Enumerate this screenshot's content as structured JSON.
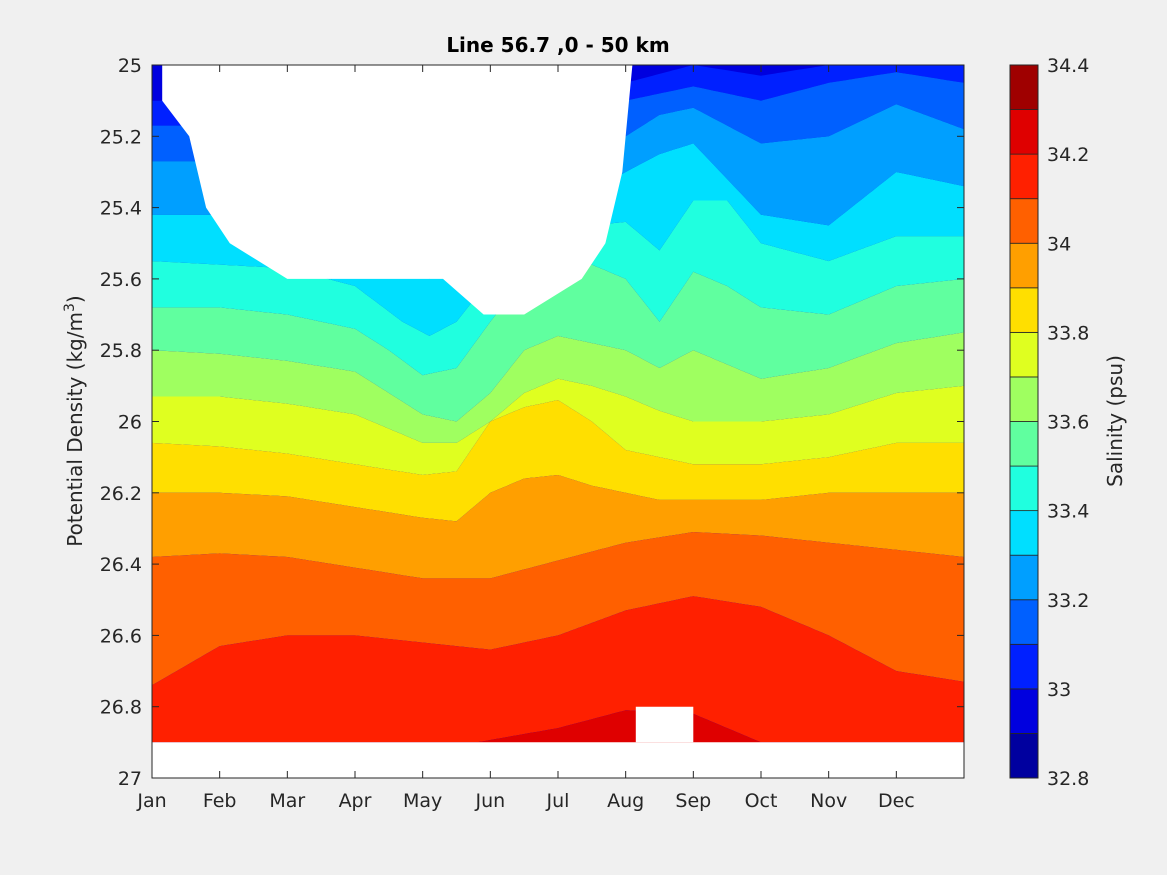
{
  "chart_data": {
    "type": "contourf",
    "title": "Line 56.7 ,0 - 50 km",
    "xlabel": "",
    "ylabel_main": "Potential Density (kg/m",
    "ylabel_sup": "3",
    "ylabel_close": ")",
    "x_ticks": [
      "Jan",
      "Feb",
      "Mar",
      "Apr",
      "May",
      "Jun",
      "Jul",
      "Aug",
      "Sep",
      "Oct",
      "Nov",
      "Dec"
    ],
    "xlim_months": [
      0,
      12
    ],
    "y_ticks": [
      "25",
      "25.2",
      "25.4",
      "25.6",
      "25.8",
      "26",
      "26.2",
      "26.4",
      "26.6",
      "26.8",
      "27"
    ],
    "ylim": [
      25,
      27
    ],
    "y_reversed": true,
    "colorbar": {
      "label": "Salinity (psu)",
      "range": [
        32.8,
        34.4
      ],
      "step": 0.1,
      "tick_labels": [
        "32.8",
        "33",
        "33.2",
        "33.4",
        "33.6",
        "33.8",
        "34",
        "34.2",
        "34.4"
      ],
      "colormap": "jet"
    },
    "contour_lines": [
      {
        "level": 33.0,
        "month": [
          0,
          2,
          4,
          6,
          7,
          8,
          9,
          10,
          11,
          12
        ],
        "density": [
          25.1,
          25.1,
          25.1,
          25.1,
          25.05,
          25.0,
          25.03,
          25.0,
          24.98,
          25.0
        ]
      },
      {
        "level": 33.1,
        "month": [
          0,
          2,
          4,
          6,
          7,
          8,
          9,
          10,
          11,
          12
        ],
        "density": [
          25.17,
          25.17,
          25.17,
          25.17,
          25.1,
          25.06,
          25.1,
          25.05,
          25.02,
          25.05
        ]
      },
      {
        "level": 33.2,
        "month": [
          0,
          2,
          4,
          6,
          7,
          7.5,
          8,
          9,
          10,
          11,
          12
        ],
        "density": [
          25.27,
          25.27,
          25.27,
          25.27,
          25.2,
          25.14,
          25.12,
          25.22,
          25.2,
          25.11,
          25.18
        ]
      },
      {
        "level": 33.3,
        "month": [
          0,
          2,
          3,
          3.7,
          4.1,
          4.5,
          5,
          6,
          7,
          7.5,
          8,
          9,
          10,
          11,
          12
        ],
        "density": [
          25.42,
          25.42,
          25.42,
          25.56,
          25.6,
          25.56,
          25.45,
          25.4,
          25.3,
          25.25,
          25.22,
          25.42,
          25.45,
          25.3,
          25.34
        ]
      },
      {
        "level": 33.4,
        "month": [
          0,
          1,
          2,
          3,
          3.7,
          4.1,
          4.5,
          5,
          6,
          6.5,
          7,
          7.5,
          8,
          8.5,
          9,
          10,
          11,
          12
        ],
        "density": [
          25.55,
          25.56,
          25.57,
          25.62,
          25.72,
          25.76,
          25.72,
          25.6,
          25.5,
          25.45,
          25.44,
          25.52,
          25.38,
          25.38,
          25.5,
          25.55,
          25.48,
          25.48
        ]
      },
      {
        "level": 33.5,
        "month": [
          0,
          1,
          2,
          3,
          3.5,
          4,
          4.5,
          5,
          5.5,
          6,
          6.5,
          7,
          7.5,
          8,
          8.5,
          9,
          10,
          11,
          12
        ],
        "density": [
          25.68,
          25.68,
          25.7,
          25.74,
          25.8,
          25.87,
          25.85,
          25.72,
          25.6,
          25.55,
          25.56,
          25.6,
          25.72,
          25.58,
          25.62,
          25.68,
          25.7,
          25.62,
          25.6
        ]
      },
      {
        "level": 33.6,
        "month": [
          0,
          1,
          2,
          3,
          3.5,
          4,
          4.5,
          5,
          5.5,
          6,
          6.5,
          7,
          7.5,
          8,
          8.5,
          9,
          10,
          11,
          12
        ],
        "density": [
          25.8,
          25.81,
          25.83,
          25.86,
          25.92,
          25.98,
          26.0,
          25.92,
          25.8,
          25.76,
          25.78,
          25.8,
          25.85,
          25.8,
          25.84,
          25.88,
          25.85,
          25.78,
          25.75
        ]
      },
      {
        "level": 33.7,
        "month": [
          0,
          1,
          2,
          3,
          3.5,
          4,
          4.5,
          5,
          5.5,
          6,
          6.5,
          7,
          7.5,
          8,
          9,
          10,
          11,
          12
        ],
        "density": [
          25.93,
          25.93,
          25.95,
          25.98,
          26.02,
          26.06,
          26.06,
          26.0,
          25.92,
          25.88,
          25.9,
          25.93,
          25.97,
          26.0,
          26.0,
          25.98,
          25.92,
          25.9
        ]
      },
      {
        "level": 33.8,
        "month": [
          0,
          1,
          2,
          3,
          4,
          4.5,
          5,
          5.5,
          6,
          6.5,
          7,
          7.5,
          8,
          9,
          10,
          11,
          12
        ],
        "density": [
          26.06,
          26.07,
          26.09,
          26.12,
          26.15,
          26.14,
          26.0,
          25.96,
          25.94,
          26.0,
          26.08,
          26.1,
          26.12,
          26.12,
          26.1,
          26.06,
          26.06
        ]
      },
      {
        "level": 33.9,
        "month": [
          0,
          1,
          2,
          3,
          4,
          4.5,
          5,
          5.5,
          6,
          6.5,
          7,
          7.5,
          8,
          9,
          10,
          11,
          12
        ],
        "density": [
          26.2,
          26.2,
          26.21,
          26.24,
          26.27,
          26.28,
          26.2,
          26.16,
          26.15,
          26.18,
          26.2,
          26.22,
          26.22,
          26.22,
          26.2,
          26.2,
          26.2
        ]
      },
      {
        "level": 34.0,
        "month": [
          0,
          1,
          2,
          3,
          4,
          5,
          6,
          7,
          8,
          9,
          10,
          11,
          12
        ],
        "density": [
          26.38,
          26.37,
          26.38,
          26.41,
          26.44,
          26.44,
          26.39,
          26.34,
          26.31,
          26.32,
          26.34,
          26.36,
          26.38
        ]
      },
      {
        "level": 34.1,
        "month": [
          0,
          1,
          2,
          3,
          4,
          5,
          6,
          7,
          8,
          9,
          10,
          11,
          12
        ],
        "density": [
          26.74,
          26.63,
          26.6,
          26.6,
          26.62,
          26.64,
          26.6,
          26.53,
          26.49,
          26.52,
          26.6,
          26.7,
          26.73
        ]
      },
      {
        "level": 34.2,
        "month": [
          0,
          2,
          4,
          4.8,
          6,
          7,
          8,
          9,
          9.5,
          12
        ],
        "density": [
          26.9,
          26.9,
          26.9,
          26.9,
          26.86,
          26.81,
          26.82,
          26.9,
          26.9,
          26.9
        ]
      }
    ],
    "missing_data_regions": [
      {
        "month": [
          0.15,
          7.1,
          7.05,
          6.95,
          6.7,
          6.35,
          5.5,
          4.9,
          4.3,
          2.0,
          1.15,
          0.8,
          0.55,
          0.15
        ],
        "density": [
          25.0,
          25.0,
          25.1,
          25.3,
          25.5,
          25.6,
          25.7,
          25.7,
          25.6,
          25.6,
          25.5,
          25.4,
          25.2,
          25.1
        ]
      },
      {
        "month": [
          7.15,
          8.0,
          8.0,
          7.15
        ],
        "density": [
          26.8,
          26.8,
          26.9,
          26.9
        ]
      },
      {
        "month": [
          0,
          12,
          12,
          0
        ],
        "density": [
          26.9,
          26.9,
          27.0,
          27.0
        ]
      }
    ]
  }
}
